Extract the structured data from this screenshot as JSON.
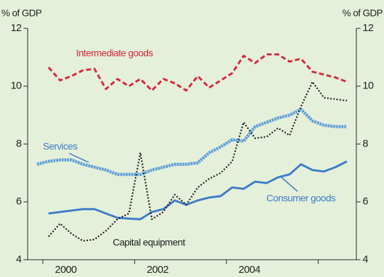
{
  "chart_data": {
    "type": "line",
    "ylabel": "% of GDP",
    "y2label": "% of GDP",
    "x": [
      1999.875,
      2000.125,
      2000.375,
      2000.625,
      2000.875,
      2001.125,
      2001.375,
      2001.625,
      2001.875,
      2002.125,
      2002.375,
      2002.625,
      2002.875,
      2003.125,
      2003.375,
      2003.625,
      2003.875,
      2004.125,
      2004.375,
      2004.625,
      2004.875,
      2005.125,
      2005.375,
      2005.625,
      2005.875,
      2006.125,
      2006.375,
      2006.625
    ],
    "xlim": [
      1999.67,
      2006.83
    ],
    "xticks": [
      {
        "value": 2000.5,
        "label": "2000"
      },
      {
        "value": 2002.5,
        "label": "2002"
      },
      {
        "value": 2004.5,
        "label": "2004"
      }
    ],
    "xminorticks": [
      2000,
      2002,
      2004,
      2006
    ],
    "ylim": [
      4,
      12
    ],
    "yticks": [
      4,
      6,
      8,
      10,
      12
    ],
    "y2lim": [
      4,
      12
    ],
    "y2ticks": [
      4,
      6,
      8,
      10,
      12
    ],
    "series": [
      {
        "name": "Intermediate goods",
        "color": "#d8263c",
        "style": "dashed",
        "values": [
          null,
          10.65,
          10.2,
          10.35,
          10.55,
          10.6,
          9.9,
          10.25,
          10.0,
          10.25,
          9.85,
          10.25,
          10.1,
          9.85,
          10.35,
          9.95,
          10.2,
          10.45,
          11.05,
          10.8,
          11.1,
          11.1,
          10.85,
          10.95,
          10.5,
          10.4,
          10.3,
          10.15
        ]
      },
      {
        "name": "Services",
        "color": "#5f9fd8",
        "style": "striped",
        "values": [
          7.3,
          7.4,
          7.45,
          7.45,
          7.3,
          7.2,
          7.1,
          6.95,
          6.95,
          6.95,
          7.1,
          7.2,
          7.3,
          7.3,
          7.35,
          7.7,
          7.9,
          8.15,
          8.1,
          8.6,
          8.75,
          8.9,
          9.0,
          9.2,
          8.8,
          8.65,
          8.6,
          8.6
        ]
      },
      {
        "name": "Consumer goods",
        "color": "#3f7bc8",
        "style": "solid",
        "values": [
          null,
          5.6,
          5.65,
          5.7,
          5.75,
          5.75,
          5.6,
          5.45,
          5.42,
          5.4,
          5.65,
          5.75,
          6.05,
          5.9,
          6.05,
          6.15,
          6.2,
          6.5,
          6.45,
          6.7,
          6.65,
          6.85,
          6.95,
          7.3,
          7.1,
          7.05,
          7.2,
          7.4
        ]
      },
      {
        "name": "Capital equipment",
        "color": "#1a1a1a",
        "style": "dotted",
        "values": [
          null,
          4.8,
          5.25,
          4.9,
          4.65,
          4.7,
          5.0,
          5.4,
          5.6,
          7.7,
          5.4,
          5.65,
          6.25,
          5.9,
          6.5,
          6.8,
          7.0,
          7.4,
          8.75,
          8.2,
          8.25,
          8.55,
          8.3,
          9.3,
          10.15,
          9.6,
          9.55,
          9.5
        ]
      }
    ]
  }
}
